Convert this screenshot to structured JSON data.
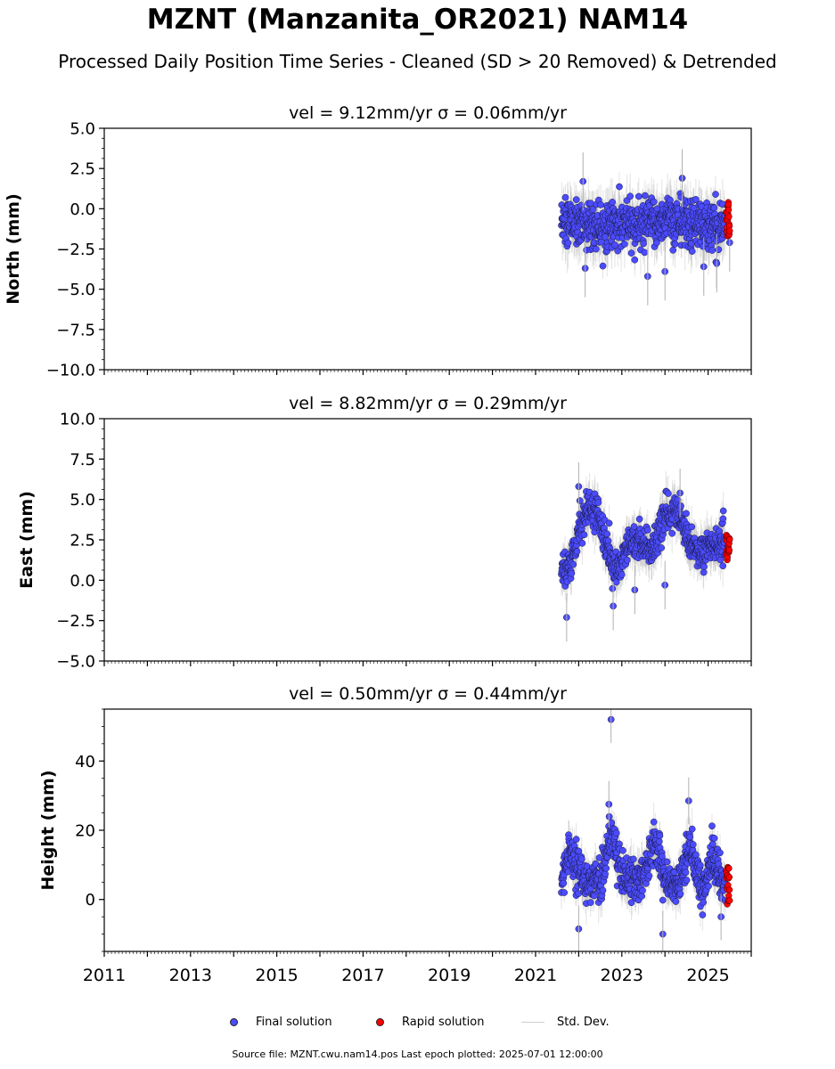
{
  "figure": {
    "title": "MZNT (Manzanita_OR2021) NAM14",
    "subtitle": "Processed Daily Position Time Series - Cleaned (SD > 20 Removed) & Detrended",
    "footer": "Source file: MZNT.cwu.nam14.pos  Last epoch plotted: 2025-07-01 12:00:00"
  },
  "legend": {
    "final_label": "Final solution",
    "rapid_label": "Rapid solution",
    "sd_label": "Std. Dev.",
    "final_color": "#4b4bff",
    "rapid_color": "#ff0000",
    "sd_color": "#b0b0b0"
  },
  "chart_data": [
    {
      "type": "scatter",
      "panel": "north",
      "title": "vel = 9.12mm/yr   σ = 0.06mm/yr",
      "ylabel": "North (mm)",
      "xlim": [
        2011.0,
        2026.0
      ],
      "ylim": [
        -10.0,
        5.0
      ],
      "yticks": [
        5.0,
        2.5,
        0.0,
        -2.5,
        -5.0,
        -7.5,
        -10.0
      ],
      "ytick_labels": [
        "5.0",
        "2.5",
        "0.0",
        "−2.5",
        "−5.0",
        "−7.5",
        "−10.0"
      ],
      "xticks": [],
      "xtick_labels": [],
      "final": {
        "start": 2021.6,
        "end": 2025.4,
        "knots": [
          [
            2021.6,
            -0.8
          ],
          [
            2022.0,
            -0.9
          ],
          [
            2022.5,
            -1.0
          ],
          [
            2023.0,
            -1.1
          ],
          [
            2023.5,
            -1.0
          ],
          [
            2024.0,
            -0.6
          ],
          [
            2024.5,
            -0.9
          ],
          [
            2025.0,
            -1.2
          ],
          [
            2025.4,
            -0.9
          ]
        ],
        "noise": 1.0,
        "sd": 1.2
      },
      "rapid": {
        "start": 2025.42,
        "end": 2025.5,
        "mean": -0.8,
        "spread": 1.2
      },
      "outliers": [
        [
          2022.1,
          1.7
        ],
        [
          2022.15,
          -3.7
        ],
        [
          2023.6,
          -4.2
        ],
        [
          2024.0,
          -3.9
        ],
        [
          2024.4,
          1.9
        ],
        [
          2024.9,
          -3.6
        ],
        [
          2025.2,
          -3.4
        ],
        [
          2025.5,
          -2.1
        ]
      ]
    },
    {
      "type": "scatter",
      "panel": "east",
      "title": "vel = 8.82mm/yr   σ = 0.29mm/yr",
      "ylabel": "East (mm)",
      "xlim": [
        2011.0,
        2026.0
      ],
      "ylim": [
        -5.0,
        10.0
      ],
      "yticks": [
        10.0,
        7.5,
        5.0,
        2.5,
        0.0,
        -2.5,
        -5.0
      ],
      "ytick_labels": [
        "10.0",
        "7.5",
        "5.0",
        "2.5",
        "0.0",
        "−2.5",
        "−5.0"
      ],
      "xticks": [],
      "xtick_labels": [],
      "final": {
        "start": 2021.6,
        "end": 2025.4,
        "knots": [
          [
            2021.6,
            0.2
          ],
          [
            2021.8,
            0.8
          ],
          [
            2022.0,
            3.0
          ],
          [
            2022.2,
            4.6
          ],
          [
            2022.45,
            4.2
          ],
          [
            2022.7,
            1.8
          ],
          [
            2022.85,
            0.6
          ],
          [
            2023.1,
            1.8
          ],
          [
            2023.4,
            2.6
          ],
          [
            2023.7,
            1.8
          ],
          [
            2024.0,
            4.0
          ],
          [
            2024.3,
            4.2
          ],
          [
            2024.6,
            2.0
          ],
          [
            2024.85,
            1.8
          ],
          [
            2025.1,
            2.2
          ],
          [
            2025.4,
            2.3
          ]
        ],
        "noise": 0.7,
        "sd": 1.0
      },
      "rapid": {
        "start": 2025.42,
        "end": 2025.5,
        "mean": 2.0,
        "spread": 0.8
      },
      "outliers": [
        [
          2021.72,
          -2.3
        ],
        [
          2022.0,
          5.8
        ],
        [
          2022.8,
          -1.6
        ],
        [
          2023.3,
          -0.6
        ],
        [
          2024.0,
          -0.3
        ],
        [
          2024.35,
          5.4
        ]
      ]
    },
    {
      "type": "scatter",
      "panel": "height",
      "title": "vel = 0.50mm/yr   σ = 0.44mm/yr",
      "ylabel": "Height (mm)",
      "xlim": [
        2011.0,
        2026.0
      ],
      "ylim": [
        -15.0,
        55.0
      ],
      "yticks": [
        40,
        20,
        0
      ],
      "ytick_labels": [
        "40",
        "20",
        "0"
      ],
      "xticks": [
        2011,
        2013,
        2015,
        2017,
        2019,
        2021,
        2023,
        2025
      ],
      "xtick_labels": [
        "2011",
        "2013",
        "2015",
        "2017",
        "2019",
        "2021",
        "2023",
        "2025"
      ],
      "final": {
        "start": 2021.6,
        "end": 2025.4,
        "knots": [
          [
            2021.6,
            5.0
          ],
          [
            2021.8,
            15.0
          ],
          [
            2022.0,
            8.0
          ],
          [
            2022.3,
            4.0
          ],
          [
            2022.5,
            5.0
          ],
          [
            2022.75,
            20.0
          ],
          [
            2023.0,
            8.0
          ],
          [
            2023.3,
            4.0
          ],
          [
            2023.55,
            8.0
          ],
          [
            2023.75,
            18.0
          ],
          [
            2024.0,
            6.0
          ],
          [
            2024.3,
            4.0
          ],
          [
            2024.6,
            15.0
          ],
          [
            2024.85,
            3.0
          ],
          [
            2025.1,
            12.0
          ],
          [
            2025.4,
            3.0
          ]
        ],
        "noise": 4.0,
        "sd": 4.5
      },
      "rapid": {
        "start": 2025.42,
        "end": 2025.5,
        "mean": 4.0,
        "spread": 5.5
      },
      "outliers": [
        [
          2022.75,
          52.0
        ],
        [
          2022.0,
          -8.5
        ],
        [
          2023.95,
          -10.0
        ],
        [
          2024.55,
          28.5
        ],
        [
          2022.7,
          27.5
        ],
        [
          2025.3,
          -5.0
        ]
      ]
    }
  ]
}
